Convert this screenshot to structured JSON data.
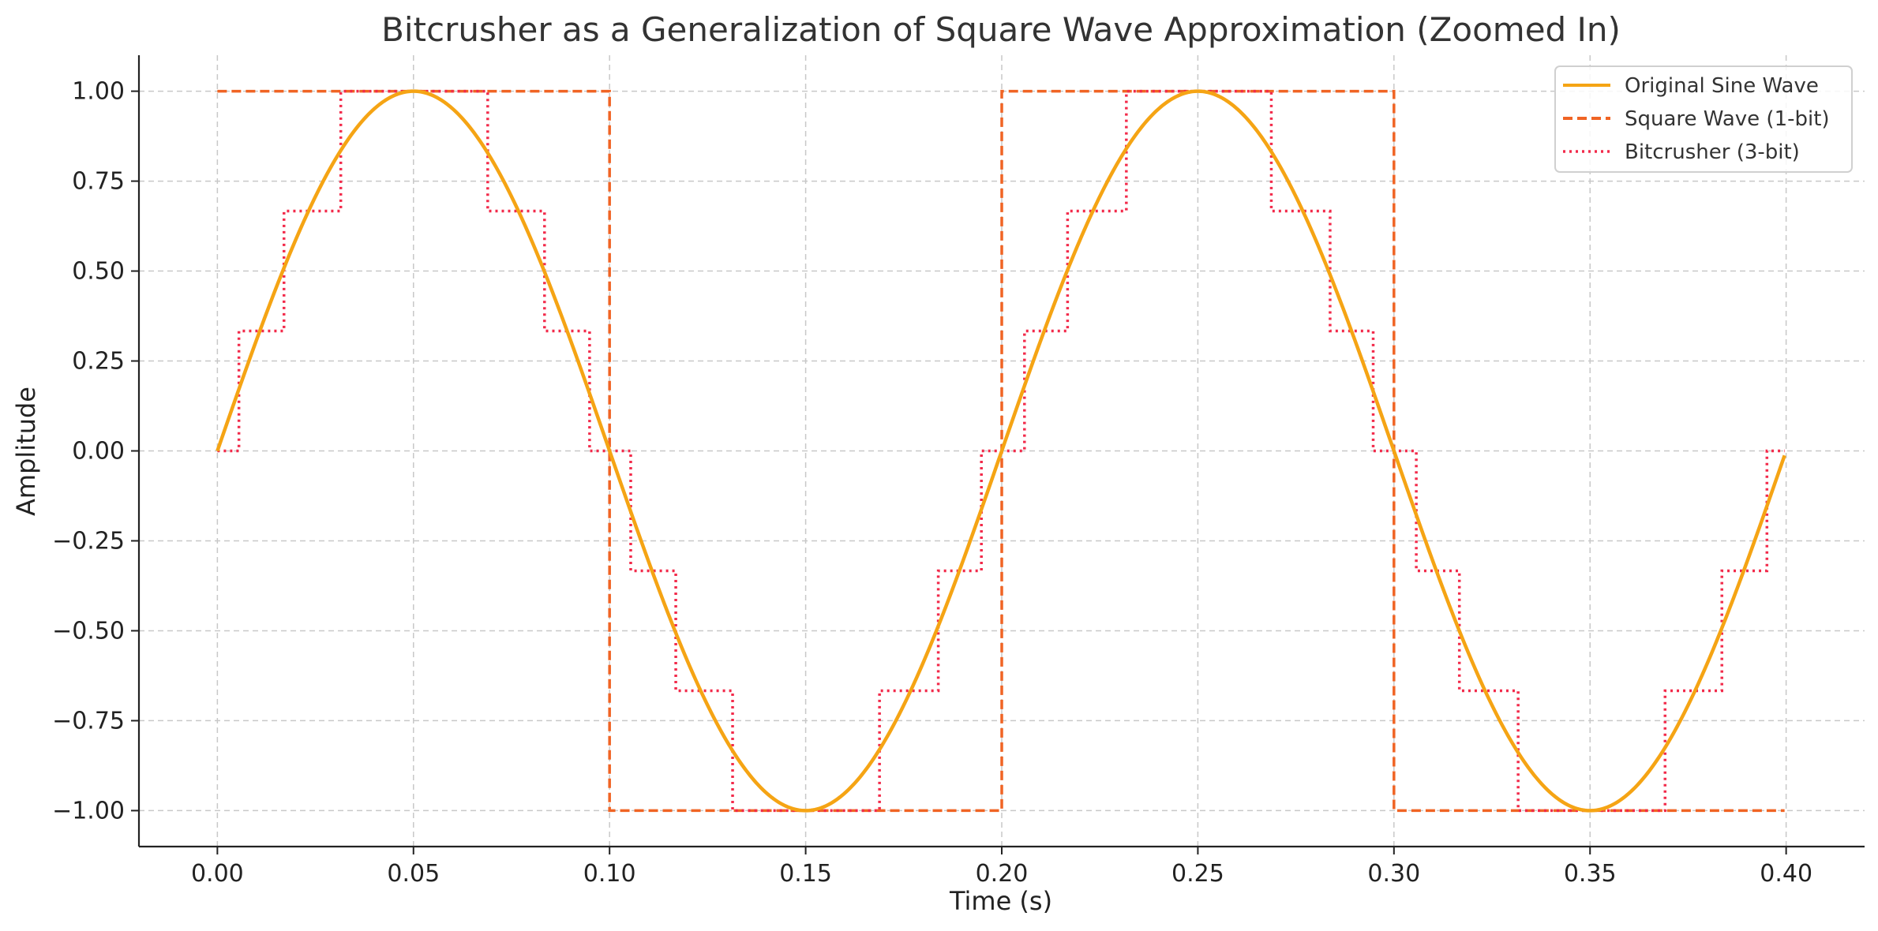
{
  "chart_data": {
    "type": "line",
    "title": "Bitcrusher as a Generalization of Square Wave Approximation (Zoomed In)",
    "xlabel": "Time (s)",
    "ylabel": "Amplitude",
    "xlim": [
      -0.02,
      0.42
    ],
    "ylim": [
      -1.1,
      1.1
    ],
    "x_ticks": [
      0.0,
      0.05,
      0.1,
      0.15,
      0.2,
      0.25,
      0.3,
      0.35,
      0.4
    ],
    "x_tick_labels": [
      "0.00",
      "0.05",
      "0.10",
      "0.15",
      "0.20",
      "0.25",
      "0.30",
      "0.35",
      "0.40"
    ],
    "y_ticks": [
      1.0,
      0.75,
      0.5,
      0.25,
      0.0,
      -0.25,
      -0.5,
      -0.75,
      -1.0
    ],
    "y_tick_labels": [
      "1.00",
      "0.75",
      "0.50",
      "0.25",
      "0.00",
      "−0.25",
      "−0.50",
      "−0.75",
      "−1.00"
    ],
    "grid": true,
    "legend_position": "top-right",
    "series": [
      {
        "name": "Original Sine Wave",
        "style": "solid",
        "color": "#F5A414",
        "frequency_hz": 5,
        "amplitude": 1.0,
        "x_range": [
          0.0,
          0.3996
        ]
      },
      {
        "name": "Square Wave (1-bit)",
        "style": "dashed",
        "color": "#F06424",
        "steps": [
          {
            "x0": 0.0,
            "x1": 0.1,
            "y": 1
          },
          {
            "x0": 0.1,
            "x1": 0.2,
            "y": -1
          },
          {
            "x0": 0.2,
            "x1": 0.3,
            "y": 1
          },
          {
            "x0": 0.3,
            "x1": 0.3996,
            "y": -1
          }
        ]
      },
      {
        "name": "Bitcrusher (3-bit)",
        "style": "dotted",
        "color": "#F22A4A",
        "levels": [
          -1,
          -0.6667,
          -0.3333,
          0,
          0.3333,
          0.6667,
          1
        ],
        "x_range": [
          0.0,
          0.3996
        ]
      }
    ]
  }
}
